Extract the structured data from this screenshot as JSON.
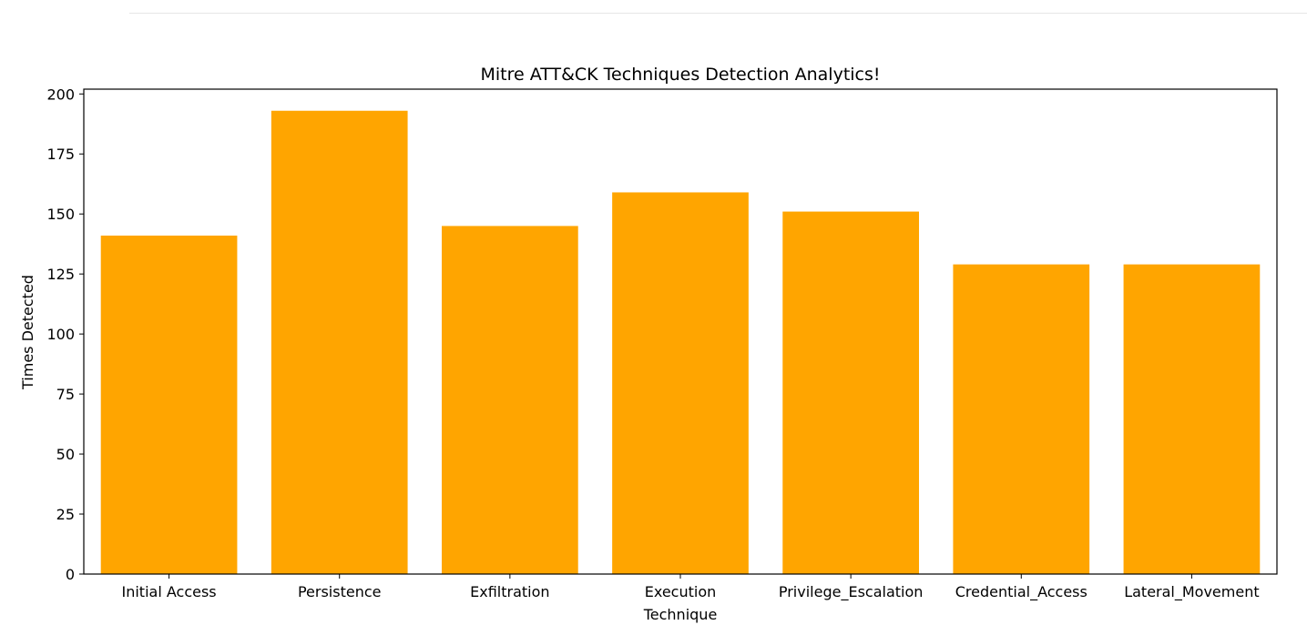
{
  "chart_data": {
    "type": "bar",
    "title": "Mitre ATT&CK Techniques Detection Analytics!",
    "xlabel": "Technique",
    "ylabel": "Times Detected",
    "categories": [
      "Initial Access",
      "Persistence",
      "Exfiltration",
      "Execution",
      "Privilege_Escalation",
      "Credential_Access",
      "Lateral_Movement"
    ],
    "values": [
      141,
      193,
      145,
      159,
      151,
      129,
      129
    ],
    "ylim": [
      0,
      202
    ],
    "yticks": [
      "0",
      "25",
      "50",
      "75",
      "100",
      "125",
      "150",
      "175",
      "200"
    ],
    "bar_color": "#ffa500",
    "grid": false,
    "legend": "none"
  }
}
